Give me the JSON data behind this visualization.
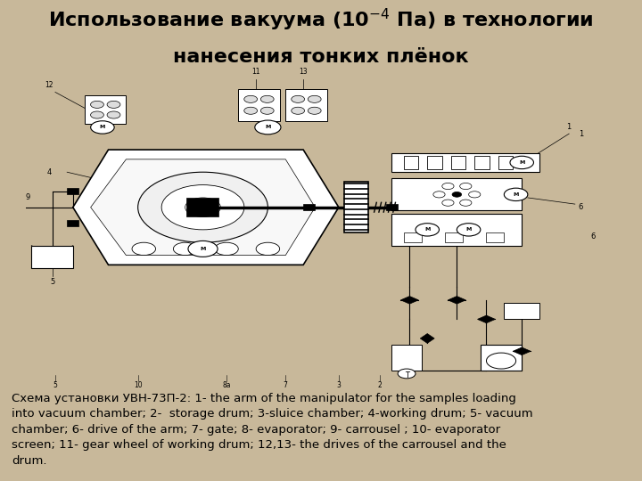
{
  "title_line1": "Использование вакуума (10$^{-4}$ Па) в технологии",
  "title_line2": "нанесения тонких плёнок",
  "background_color": "#c8b89a",
  "diagram_bg": "#ffffff",
  "caption_lines": [
    "Схема установки УВН-73П-2: 1- the arm of the manipulator for the samples loading",
    "into vacuum chamber; 2-  storage drum; 3-sluice chamber; 4-working drum; 5- vacuum",
    "chamber; 6- drive of the arm; 7- gate; 8- evaporator; 9- carrousel ; 10- evaporator",
    "screen; 11- gear wheel of working drum; 12,13- the drives of the carrousel and the",
    "drum."
  ],
  "caption_fontsize": 9.5,
  "title_fontsize": 16,
  "title_color": "#000000",
  "caption_color": "#000000"
}
